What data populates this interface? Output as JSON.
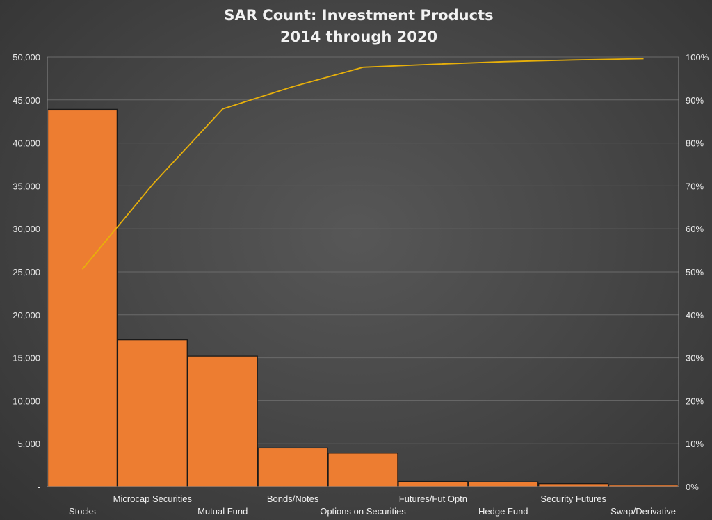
{
  "chart_data": {
    "type": "bar",
    "title": "SAR Count: Investment Products",
    "subtitle": "2014 through 2020",
    "categories": [
      "Stocks",
      "Microcap Securities",
      "Mutual Fund",
      "Bonds/Notes",
      "Options on Securities",
      "Futures/Fut Optn",
      "Hedge Fund",
      "Security Futures",
      "Swap/Derivative"
    ],
    "series": [
      {
        "values": [
          43900,
          17100,
          15200,
          4500,
          3900,
          600,
          550,
          350,
          200
        ],
        "color": "#ed7d31",
        "type": "bar",
        "axis": "left"
      },
      {
        "values": [
          50.6,
          70.3,
          87.9,
          93.1,
          97.6,
          98.3,
          98.9,
          99.3,
          99.6
        ],
        "color": "#e8b00a",
        "type": "line",
        "axis": "right"
      }
    ],
    "y_left": {
      "range": [
        0,
        50000
      ],
      "ticks": [
        "-",
        "5,000",
        "10,000",
        "15,000",
        "20,000",
        "25,000",
        "30,000",
        "35,000",
        "40,000",
        "45,000",
        "50,000"
      ]
    },
    "y_right": {
      "range": [
        0,
        100
      ],
      "unit": "%",
      "ticks": [
        "0%",
        "10%",
        "20%",
        "30%",
        "40%",
        "50%",
        "60%",
        "70%",
        "80%",
        "90%",
        "100%"
      ]
    },
    "grid": true,
    "legend": "none"
  }
}
